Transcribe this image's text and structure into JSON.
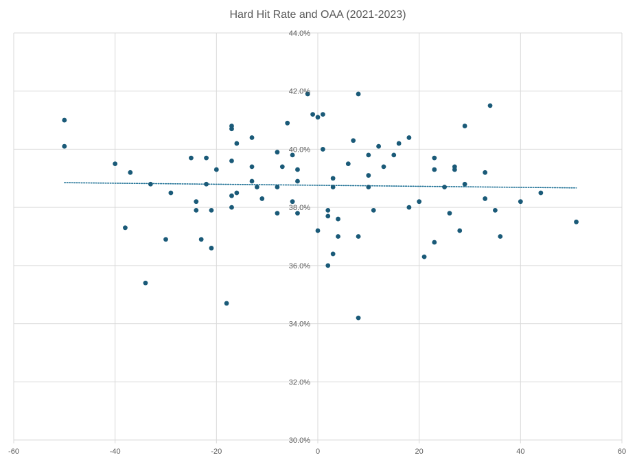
{
  "chart_data": {
    "type": "scatter",
    "title": "Hard Hit Rate and OAA (2021-2023)",
    "xlabel": "",
    "ylabel": "",
    "xlim": [
      -60,
      60
    ],
    "ylim": [
      0.3,
      0.44
    ],
    "x_ticks": [
      -60,
      -40,
      -20,
      0,
      20,
      40,
      60
    ],
    "x_tick_labels": [
      "-60",
      "-40",
      "-20",
      "0",
      "20",
      "40",
      "60"
    ],
    "y_ticks": [
      0.3,
      0.32,
      0.34,
      0.36,
      0.38,
      0.4,
      0.42,
      0.44
    ],
    "y_tick_labels": [
      "30.0%",
      "32.0%",
      "34.0%",
      "36.0%",
      "38.0%",
      "40.0%",
      "42.0%",
      "44.0%"
    ],
    "grid": true,
    "legend": "none",
    "colors": {
      "points": "#1a5a78",
      "trendline": "#1a6e93",
      "grid": "#d9d9d9",
      "tick_text": "#595959",
      "title_text": "#595959"
    },
    "series": [
      {
        "points": [
          [
            -50,
            0.41
          ],
          [
            -50,
            0.401
          ],
          [
            -40,
            0.395
          ],
          [
            -38,
            0.373
          ],
          [
            -37,
            0.392
          ],
          [
            -34,
            0.354
          ],
          [
            -33,
            0.388
          ],
          [
            -30,
            0.369
          ],
          [
            -29,
            0.385
          ],
          [
            -25,
            0.397
          ],
          [
            -24,
            0.382
          ],
          [
            -24,
            0.379
          ],
          [
            -23,
            0.369
          ],
          [
            -22,
            0.397
          ],
          [
            -22,
            0.388
          ],
          [
            -21,
            0.379
          ],
          [
            -21,
            0.366
          ],
          [
            -20,
            0.393
          ],
          [
            -18,
            0.347
          ],
          [
            -17,
            0.408
          ],
          [
            -17,
            0.407
          ],
          [
            -17,
            0.396
          ],
          [
            -17,
            0.384
          ],
          [
            -17,
            0.38
          ],
          [
            -16,
            0.402
          ],
          [
            -16,
            0.385
          ],
          [
            -13,
            0.404
          ],
          [
            -13,
            0.394
          ],
          [
            -13,
            0.389
          ],
          [
            -12,
            0.387
          ],
          [
            -11,
            0.383
          ],
          [
            -8,
            0.399
          ],
          [
            -8,
            0.387
          ],
          [
            -8,
            0.378
          ],
          [
            -7,
            0.394
          ],
          [
            -6,
            0.409
          ],
          [
            -5,
            0.398
          ],
          [
            -5,
            0.382
          ],
          [
            -4,
            0.393
          ],
          [
            -4,
            0.389
          ],
          [
            -4,
            0.378
          ],
          [
            -2,
            0.419
          ],
          [
            -1,
            0.412
          ],
          [
            0,
            0.411
          ],
          [
            1,
            0.412
          ],
          [
            1,
            0.4
          ],
          [
            0,
            0.372
          ],
          [
            2,
            0.379
          ],
          [
            2,
            0.377
          ],
          [
            2,
            0.36
          ],
          [
            3,
            0.39
          ],
          [
            3,
            0.387
          ],
          [
            3,
            0.364
          ],
          [
            4,
            0.376
          ],
          [
            4,
            0.37
          ],
          [
            6,
            0.395
          ],
          [
            7,
            0.403
          ],
          [
            8,
            0.419
          ],
          [
            8,
            0.37
          ],
          [
            8,
            0.342
          ],
          [
            10,
            0.398
          ],
          [
            10,
            0.391
          ],
          [
            10,
            0.387
          ],
          [
            11,
            0.379
          ],
          [
            12,
            0.401
          ],
          [
            13,
            0.394
          ],
          [
            15,
            0.398
          ],
          [
            16,
            0.402
          ],
          [
            18,
            0.404
          ],
          [
            18,
            0.38
          ],
          [
            20,
            0.382
          ],
          [
            21,
            0.363
          ],
          [
            23,
            0.397
          ],
          [
            23,
            0.393
          ],
          [
            23,
            0.368
          ],
          [
            25,
            0.387
          ],
          [
            26,
            0.378
          ],
          [
            27,
            0.394
          ],
          [
            27,
            0.393
          ],
          [
            28,
            0.372
          ],
          [
            29,
            0.408
          ],
          [
            29,
            0.388
          ],
          [
            33,
            0.392
          ],
          [
            33,
            0.383
          ],
          [
            34,
            0.415
          ],
          [
            35,
            0.379
          ],
          [
            36,
            0.37
          ],
          [
            40,
            0.382
          ],
          [
            44,
            0.385
          ],
          [
            51,
            0.375
          ]
        ]
      }
    ],
    "trendline": {
      "type": "linear",
      "style": "dotted",
      "x": [
        -50,
        51
      ],
      "y": [
        0.3885,
        0.3867
      ]
    }
  }
}
